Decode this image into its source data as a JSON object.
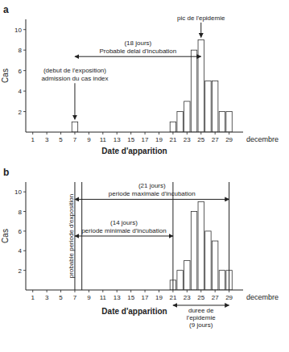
{
  "chart_data": [
    {
      "type": "bar",
      "title": "a",
      "x": [
        7,
        21,
        22,
        23,
        24,
        25,
        26,
        27,
        28,
        29
      ],
      "values": [
        1,
        1,
        2,
        3,
        8,
        9,
        5,
        5,
        2,
        2
      ],
      "color": "#ffffff",
      "xlabel": "Date d'apparition",
      "ylabel": "Cas",
      "xlim": [
        0,
        31
      ],
      "ylim": [
        0,
        11
      ],
      "xticks": [
        1,
        3,
        5,
        7,
        9,
        11,
        13,
        15,
        17,
        19,
        21,
        23,
        25,
        27,
        29
      ],
      "yticks": [
        2,
        4,
        6,
        8,
        10
      ],
      "annotations": [
        {
          "type": "note",
          "text": "decembre"
        },
        {
          "type": "arrow",
          "x": 7,
          "text": [
            "admission du cas index",
            "(debut de l'exposition)"
          ]
        },
        {
          "type": "arrow",
          "x": 25,
          "text": [
            "pic de l'epidemie"
          ]
        },
        {
          "type": "span",
          "x1": 7,
          "x2": 25,
          "text": [
            "Probable delai d'incubation",
            "(18 jours)"
          ]
        }
      ]
    },
    {
      "type": "bar",
      "title": "b",
      "x": [
        21,
        22,
        23,
        24,
        25,
        26,
        27,
        28,
        29
      ],
      "values": [
        1,
        2,
        3,
        8,
        9,
        6,
        5,
        2,
        2
      ],
      "color": "#ffffff",
      "xlabel": "Date d'apparition",
      "ylabel": "Cas",
      "xlim": [
        0,
        31
      ],
      "ylim": [
        0,
        11
      ],
      "xticks": [
        1,
        3,
        5,
        7,
        9,
        11,
        13,
        15,
        17,
        19,
        21,
        23,
        25,
        27,
        29
      ],
      "yticks": [
        2,
        4,
        6,
        8,
        10
      ],
      "annotations": [
        {
          "type": "note",
          "text": "decembre"
        },
        {
          "type": "vline",
          "x": 7
        },
        {
          "type": "vline",
          "x": 8
        },
        {
          "type": "vline",
          "x": 21
        },
        {
          "type": "vline",
          "x": 29
        },
        {
          "type": "vlabel",
          "x": 7,
          "text": [
            "probable periode d'exposition"
          ]
        },
        {
          "type": "span",
          "x1": 7,
          "x2": 29,
          "text": [
            "periode maximale d'incubation",
            "(21 jours)"
          ]
        },
        {
          "type": "span",
          "x1": 7,
          "x2": 21,
          "text": [
            "periode minimale d'incubation",
            "(14 jours)"
          ]
        },
        {
          "type": "span_below",
          "x1": 21,
          "x2": 29,
          "text": [
            "duree de",
            "l'epidemie",
            "(9 jours)"
          ]
        }
      ]
    }
  ]
}
